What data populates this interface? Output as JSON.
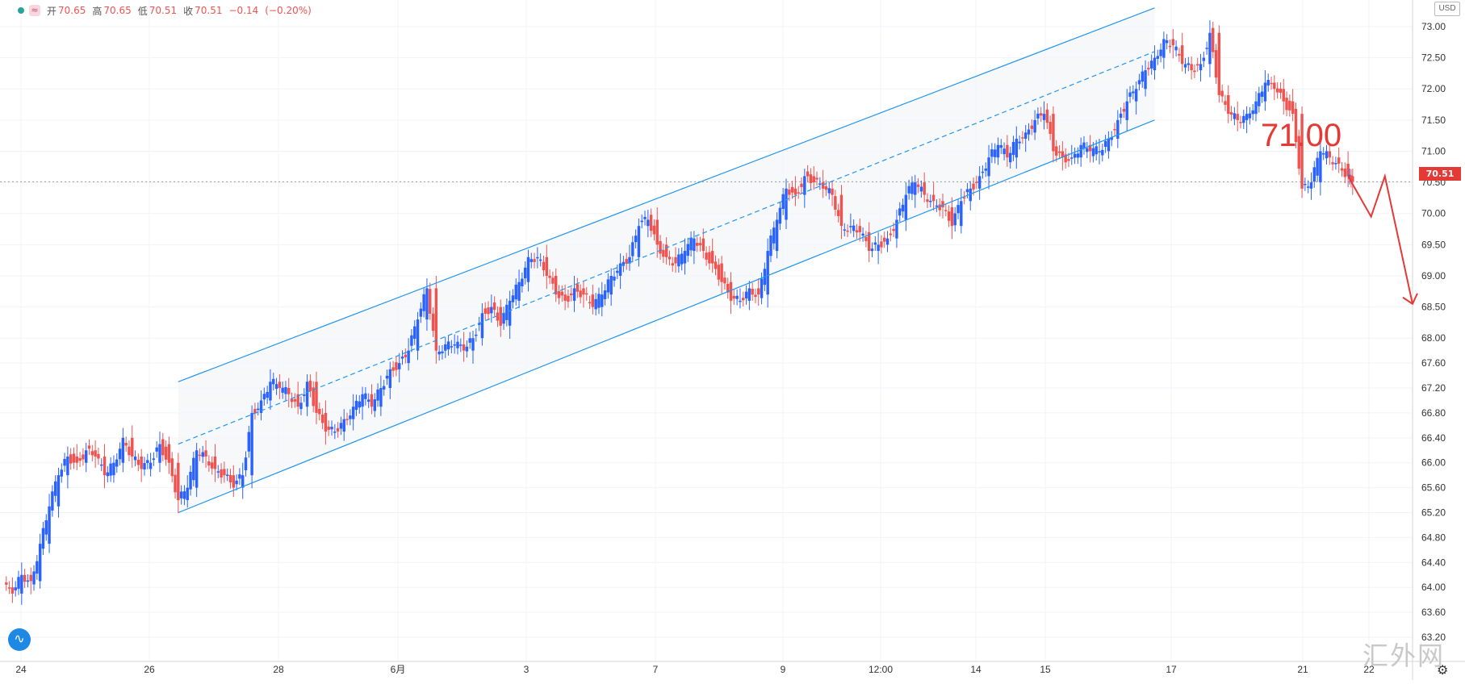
{
  "header": {
    "open_label": "开",
    "open_value": "70.65",
    "high_label": "高",
    "high_value": "70.65",
    "low_label": "低",
    "low_value": "70.51",
    "close_label": "收",
    "close_value": "70.51",
    "change": "−0.14",
    "change_pct": "(−0.20%)",
    "status_icon": "market-open-dot",
    "indicator_icon": "wave-icon",
    "indicator_symbol": "≈"
  },
  "currency_label": "USD",
  "last_price": "70.51",
  "annotation_text": "71.00",
  "watermark": "汇外网",
  "chart_data": {
    "type": "candlestick",
    "x_ticks": [
      "24",
      "26",
      "28",
      "6月",
      "3",
      "7",
      "9",
      "12:00",
      "14",
      "15",
      "17",
      "21",
      "22"
    ],
    "y_ticks": [
      "73.00",
      "72.50",
      "72.00",
      "71.50",
      "71.00",
      "70.50",
      "70.00",
      "69.50",
      "69.00",
      "68.50",
      "68.00",
      "67.60",
      "67.20",
      "66.80",
      "66.40",
      "66.00",
      "65.60",
      "65.20",
      "64.80",
      "64.40",
      "64.00",
      "63.60",
      "63.20"
    ],
    "ylim": [
      63.0,
      73.2
    ],
    "last_price": 70.51,
    "colors": {
      "up": "#2962ff",
      "down": "#ef5350",
      "channel": "#2196f3",
      "forecast": "#e53935",
      "price_tag": "#e53935",
      "grid": "#f0f3fa"
    },
    "series": [
      {
        "name": "price",
        "price_path": [
          [
            0,
            64.0
          ],
          [
            2,
            63.9
          ],
          [
            4,
            64.2
          ],
          [
            6,
            64.1
          ],
          [
            8,
            64.7
          ],
          [
            10,
            65.3
          ],
          [
            12,
            65.8
          ],
          [
            14,
            66.1
          ],
          [
            16,
            66.0
          ],
          [
            18,
            66.2
          ],
          [
            20,
            66.1
          ],
          [
            22,
            65.8
          ],
          [
            24,
            66.0
          ],
          [
            26,
            66.4
          ],
          [
            28,
            66.1
          ],
          [
            30,
            65.9
          ],
          [
            32,
            66.0
          ],
          [
            34,
            66.3
          ],
          [
            36,
            66.0
          ],
          [
            38,
            65.4
          ],
          [
            40,
            65.6
          ],
          [
            42,
            66.2
          ],
          [
            44,
            66.1
          ],
          [
            46,
            65.9
          ],
          [
            48,
            65.8
          ],
          [
            50,
            65.6
          ],
          [
            52,
            65.8
          ],
          [
            54,
            66.8
          ],
          [
            56,
            67.0
          ],
          [
            58,
            67.3
          ],
          [
            60,
            67.2
          ],
          [
            62,
            67.1
          ],
          [
            64,
            66.9
          ],
          [
            66,
            67.3
          ],
          [
            68,
            66.8
          ],
          [
            70,
            66.5
          ],
          [
            72,
            66.5
          ],
          [
            74,
            66.7
          ],
          [
            76,
            66.9
          ],
          [
            78,
            67.1
          ],
          [
            80,
            66.9
          ],
          [
            82,
            67.2
          ],
          [
            84,
            67.5
          ],
          [
            86,
            67.6
          ],
          [
            88,
            67.8
          ],
          [
            90,
            68.3
          ],
          [
            92,
            68.8
          ],
          [
            94,
            67.8
          ],
          [
            96,
            67.9
          ],
          [
            98,
            67.9
          ],
          [
            100,
            67.8
          ],
          [
            102,
            68.0
          ],
          [
            104,
            68.4
          ],
          [
            106,
            68.5
          ],
          [
            108,
            68.2
          ],
          [
            110,
            68.6
          ],
          [
            112,
            68.9
          ],
          [
            114,
            69.3
          ],
          [
            116,
            69.3
          ],
          [
            118,
            69.0
          ],
          [
            120,
            68.7
          ],
          [
            122,
            68.6
          ],
          [
            124,
            68.8
          ],
          [
            126,
            68.7
          ],
          [
            128,
            68.5
          ],
          [
            130,
            68.7
          ],
          [
            132,
            69.0
          ],
          [
            134,
            69.2
          ],
          [
            136,
            69.3
          ],
          [
            138,
            69.8
          ],
          [
            140,
            69.9
          ],
          [
            142,
            69.5
          ],
          [
            144,
            69.3
          ],
          [
            146,
            69.2
          ],
          [
            148,
            69.4
          ],
          [
            150,
            69.6
          ],
          [
            152,
            69.4
          ],
          [
            154,
            69.2
          ],
          [
            156,
            68.9
          ],
          [
            158,
            68.6
          ],
          [
            160,
            68.6
          ],
          [
            162,
            68.8
          ],
          [
            164,
            68.7
          ],
          [
            166,
            69.4
          ],
          [
            168,
            69.9
          ],
          [
            170,
            70.4
          ],
          [
            172,
            70.3
          ],
          [
            174,
            70.6
          ],
          [
            176,
            70.5
          ],
          [
            178,
            70.4
          ],
          [
            180,
            70.3
          ],
          [
            182,
            69.8
          ],
          [
            184,
            69.8
          ],
          [
            186,
            69.7
          ],
          [
            188,
            69.4
          ],
          [
            190,
            69.5
          ],
          [
            192,
            69.6
          ],
          [
            194,
            69.9
          ],
          [
            196,
            70.3
          ],
          [
            198,
            70.5
          ],
          [
            200,
            70.3
          ],
          [
            202,
            70.2
          ],
          [
            204,
            70.1
          ],
          [
            206,
            69.8
          ],
          [
            208,
            70.2
          ],
          [
            210,
            70.4
          ],
          [
            212,
            70.6
          ],
          [
            214,
            70.9
          ],
          [
            216,
            71.1
          ],
          [
            218,
            70.9
          ],
          [
            220,
            71.2
          ],
          [
            222,
            71.3
          ],
          [
            224,
            71.5
          ],
          [
            226,
            71.6
          ],
          [
            228,
            71.0
          ],
          [
            230,
            70.9
          ],
          [
            232,
            70.9
          ],
          [
            234,
            71.1
          ],
          [
            236,
            71.0
          ],
          [
            238,
            71.0
          ],
          [
            240,
            71.2
          ],
          [
            242,
            71.5
          ],
          [
            244,
            71.8
          ],
          [
            246,
            72.0
          ],
          [
            248,
            72.3
          ],
          [
            250,
            72.5
          ],
          [
            252,
            72.8
          ],
          [
            254,
            72.7
          ],
          [
            256,
            72.4
          ],
          [
            258,
            72.3
          ],
          [
            260,
            72.4
          ],
          [
            262,
            72.9
          ],
          [
            264,
            71.9
          ],
          [
            266,
            71.6
          ],
          [
            268,
            71.5
          ],
          [
            270,
            71.6
          ],
          [
            272,
            71.8
          ],
          [
            274,
            72.1
          ],
          [
            276,
            72.0
          ],
          [
            278,
            71.8
          ],
          [
            280,
            71.6
          ],
          [
            282,
            70.4
          ],
          [
            284,
            70.5
          ],
          [
            286,
            71.0
          ],
          [
            288,
            70.9
          ],
          [
            290,
            70.8
          ],
          [
            292,
            70.6
          ],
          [
            293,
            70.51
          ]
        ]
      }
    ],
    "channel": {
      "upper": [
        [
          38,
          67.3
        ],
        [
          250,
          73.3
        ]
      ],
      "lower": [
        [
          38,
          65.2
        ],
        [
          250,
          71.5
        ]
      ],
      "mid": [
        [
          38,
          66.3
        ],
        [
          250,
          72.6
        ]
      ]
    },
    "forecast_path": [
      [
        292,
        70.6
      ],
      [
        297,
        69.95
      ],
      [
        300,
        70.6
      ],
      [
        306,
        68.55
      ]
    ]
  }
}
